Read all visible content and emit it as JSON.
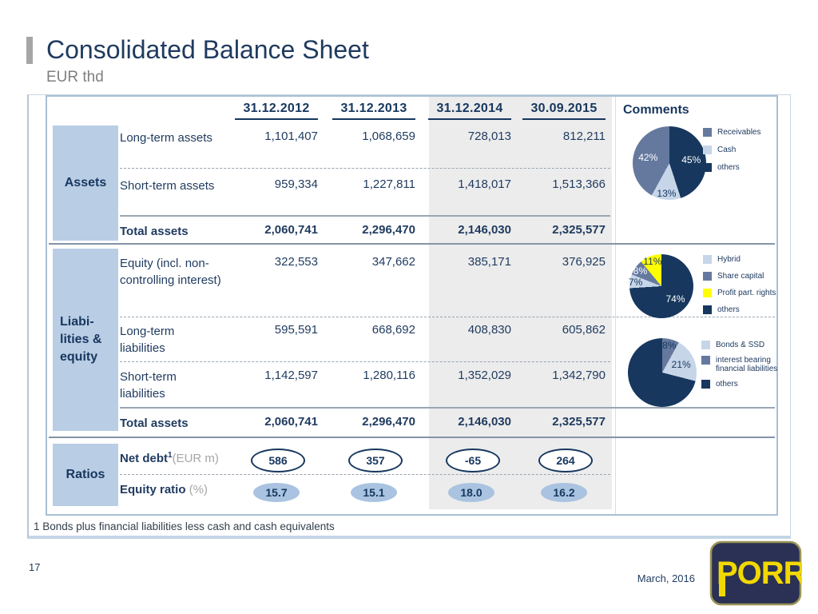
{
  "slide": {
    "title": "Consolidated Balance Sheet",
    "subtitle": "EUR thd",
    "footnote": "1 Bonds plus financial liabilities less cash and cash equivalents",
    "page_number": "17",
    "date": "March, 2016",
    "logo_text": "PORR"
  },
  "colors": {
    "navy": "#17375e",
    "slate_blue": "#65799f",
    "light_blue": "#c6d5e8",
    "yellow": "#ffff00",
    "group_label_bg": "#b9cde5",
    "ratio_badge_fill": "#a9c3e1",
    "highlight_column_bg": "#ececec",
    "text_navy": "#1f3a5f",
    "text_gray": "#7f7f7f"
  },
  "table": {
    "columns": [
      "31.12.2012",
      "31.12.2013",
      "31.12.2014",
      "30.09.2015"
    ],
    "comments_header": "Comments",
    "groups": {
      "assets": "Assets",
      "liabilities_lines": [
        "Liabi-",
        "lities &",
        "equity"
      ],
      "ratios": "Ratios"
    },
    "rows": {
      "long_term_assets": {
        "label": "Long-term assets",
        "values": [
          "1,101,407",
          "1,068,659",
          "728,013",
          "812,211"
        ]
      },
      "short_term_assets": {
        "label": "Short-term assets",
        "values": [
          "959,334",
          "1,227,811",
          "1,418,017",
          "1,513,366"
        ]
      },
      "total_assets_1": {
        "label": "Total assets",
        "values": [
          "2,060,741",
          "2,296,470",
          "2,146,030",
          "2,325,577"
        ]
      },
      "equity": {
        "label": "Equity (incl. non-controlling interest)",
        "values": [
          "322,553",
          "347,662",
          "385,171",
          "376,925"
        ]
      },
      "long_term_liabilities": {
        "label": "Long-term liabilities",
        "values": [
          "595,591",
          "668,692",
          "408,830",
          "605,862"
        ]
      },
      "short_term_liabilities": {
        "label": "Short-term liabilities",
        "values": [
          "1,142,597",
          "1,280,116",
          "1,352,029",
          "1,342,790"
        ]
      },
      "total_assets_2": {
        "label": "Total assets",
        "values": [
          "2,060,741",
          "2,296,470",
          "2,146,030",
          "2,325,577"
        ]
      },
      "net_debt": {
        "label": "Net debt",
        "footnote_ref": "1",
        "unit": "(EUR m)",
        "values": [
          "586",
          "357",
          "-65",
          "264"
        ]
      },
      "equity_ratio": {
        "label": "Equity ratio",
        "unit": "(%)",
        "values": [
          "15.7",
          "15.1",
          "18.0",
          "16.2"
        ]
      }
    }
  },
  "chart_data": [
    {
      "type": "pie",
      "legend_position": "right",
      "slices": [
        {
          "label": "others",
          "value": 45,
          "color": "#17375e",
          "label_color": "#ffffff"
        },
        {
          "label": "Cash",
          "value": 13,
          "color": "#c6d5e8",
          "label_color": "#17375e"
        },
        {
          "label": "Receivables",
          "value": 42,
          "color": "#65799f",
          "label_color": "#ffffff"
        }
      ],
      "legend": [
        {
          "label": "Receivables",
          "color": "#65799f"
        },
        {
          "label": "Cash",
          "color": "#c6d5e8"
        },
        {
          "label": "others",
          "color": "#17375e"
        }
      ]
    },
    {
      "type": "pie",
      "legend_position": "right",
      "slices": [
        {
          "label": "others",
          "value": 74,
          "color": "#17375e",
          "label_color": "#ffffff"
        },
        {
          "label": "Hybrid",
          "value": 7,
          "color": "#c6d5e8",
          "label_color": "#17375e"
        },
        {
          "label": "Share capital",
          "value": 8,
          "color": "#65799f",
          "label_color": "#ffffff"
        },
        {
          "label": "Profit part. rights",
          "value": 11,
          "color": "#ffff00",
          "label_color": "#17375e"
        }
      ],
      "legend": [
        {
          "label": "Hybrid",
          "color": "#c6d5e8"
        },
        {
          "label": "Share capital",
          "color": "#65799f"
        },
        {
          "label": "Profit part. rights",
          "color": "#ffff00"
        },
        {
          "label": "others",
          "color": "#17375e"
        }
      ]
    },
    {
      "type": "pie",
      "legend_position": "right",
      "slices": [
        {
          "label": "interest bearing financial liabilities",
          "value": 8,
          "color": "#65799f",
          "label_color": "#17375e"
        },
        {
          "label": "Bonds & SSD",
          "value": 21,
          "color": "#c6d5e8",
          "label_color": "#17375e"
        },
        {
          "label": "others",
          "value": 71,
          "color": "#17375e",
          "label_color": "#ffffff",
          "show_label": false
        }
      ],
      "legend": [
        {
          "label": "Bonds & SSD",
          "color": "#c6d5e8"
        },
        {
          "label": "interest bearing financial liabilities",
          "color": "#65799f"
        },
        {
          "label": "others",
          "color": "#17375e"
        }
      ]
    }
  ]
}
